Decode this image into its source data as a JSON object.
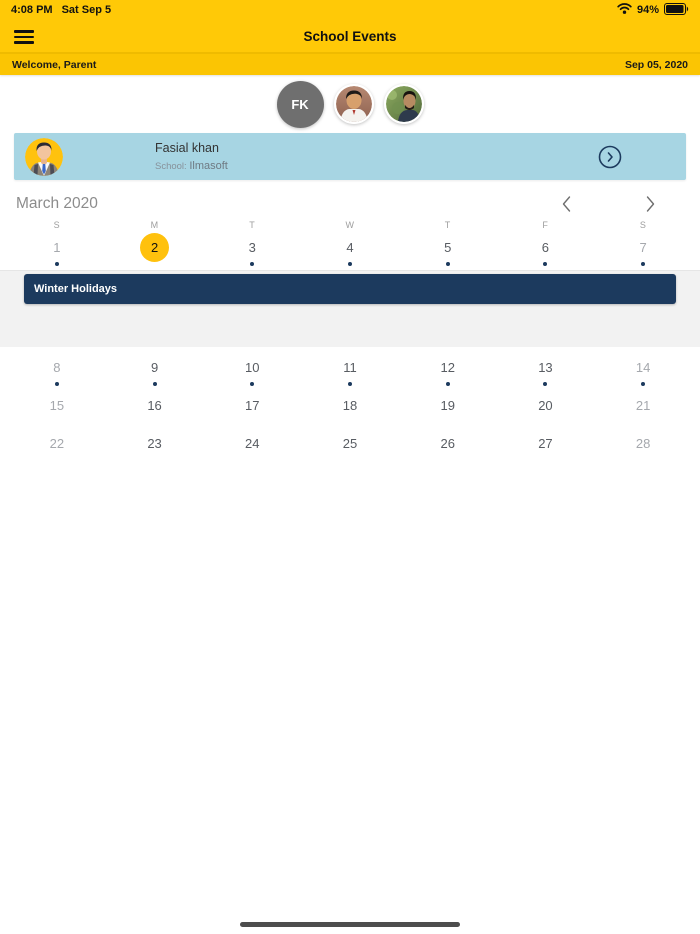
{
  "status_bar": {
    "time": "4:08 PM",
    "date": "Sat Sep 5",
    "battery": "94%"
  },
  "nav": {
    "title": "School Events"
  },
  "welcome_bar": {
    "greeting": "Welcome, Parent",
    "date": "Sep 05, 2020"
  },
  "avatars": {
    "initials": "FK"
  },
  "student_card": {
    "name": "Fasial khan",
    "school_label": "School:",
    "school_name": "Ilmasoft"
  },
  "calendar": {
    "month_title": "March 2020",
    "day_headers": [
      "S",
      "M",
      "T",
      "W",
      "T",
      "F",
      "S"
    ],
    "selected_day": 2,
    "event": {
      "title": "Winter Holidays"
    },
    "weeks": [
      [
        {
          "n": "1",
          "dot": true
        },
        {
          "n": "2",
          "dot": false,
          "selected": true
        },
        {
          "n": "3",
          "dot": true
        },
        {
          "n": "4",
          "dot": true
        },
        {
          "n": "5",
          "dot": true
        },
        {
          "n": "6",
          "dot": true
        },
        {
          "n": "7",
          "dot": true
        }
      ],
      [
        {
          "n": "8",
          "dot": true
        },
        {
          "n": "9",
          "dot": true
        },
        {
          "n": "10",
          "dot": true
        },
        {
          "n": "11",
          "dot": true
        },
        {
          "n": "12",
          "dot": true
        },
        {
          "n": "13",
          "dot": true
        },
        {
          "n": "14",
          "dot": true
        }
      ],
      [
        {
          "n": "15",
          "dot": false
        },
        {
          "n": "16",
          "dot": false
        },
        {
          "n": "17",
          "dot": false
        },
        {
          "n": "18",
          "dot": false
        },
        {
          "n": "19",
          "dot": false
        },
        {
          "n": "20",
          "dot": false
        },
        {
          "n": "21",
          "dot": false
        }
      ],
      [
        {
          "n": "22",
          "dot": false
        },
        {
          "n": "23",
          "dot": false
        },
        {
          "n": "24",
          "dot": false
        },
        {
          "n": "25",
          "dot": false
        },
        {
          "n": "26",
          "dot": false
        },
        {
          "n": "27",
          "dot": false
        },
        {
          "n": "28",
          "dot": false
        }
      ]
    ]
  },
  "colors": {
    "header_yellow": "#FFC907",
    "welcome_yellow": "#FBC503",
    "navy": "#1C3A5E",
    "card_blue": "#A7D5E3",
    "highlight_yellow": "#FFC10D"
  }
}
